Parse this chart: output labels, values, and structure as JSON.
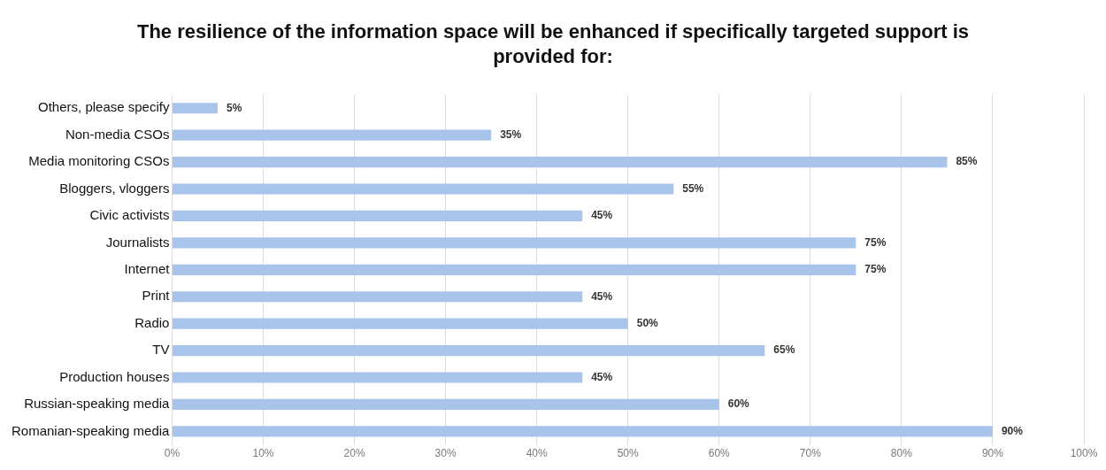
{
  "chart_data": {
    "type": "bar",
    "orientation": "horizontal",
    "title": "The resilience of the information space will be enhanced if specifically targeted support is provided for:",
    "categories": [
      "Others, please specify",
      "Non-media CSOs",
      "Media monitoring CSOs",
      "Bloggers, vloggers",
      "Civic activists",
      "Journalists",
      "Internet",
      "Print",
      "Radio",
      "TV",
      "Production houses",
      "Russian-speaking media",
      "Romanian-speaking media"
    ],
    "values": [
      5,
      35,
      85,
      55,
      45,
      75,
      75,
      45,
      50,
      65,
      45,
      60,
      90
    ],
    "value_labels": [
      "5%",
      "35%",
      "85%",
      "55%",
      "45%",
      "75%",
      "75%",
      "45%",
      "50%",
      "65%",
      "45%",
      "60%",
      "90%"
    ],
    "color": "#a9c4eb",
    "xlim": [
      0,
      100
    ],
    "xticks": [
      {
        "value": 0,
        "label": "0%"
      },
      {
        "value": 10,
        "label": "10%"
      },
      {
        "value": 20,
        "label": "20%"
      },
      {
        "value": 30,
        "label": "30%"
      },
      {
        "value": 40,
        "label": "40%"
      },
      {
        "value": 50,
        "label": "50%"
      },
      {
        "value": 60,
        "label": "60%"
      },
      {
        "value": 70,
        "label": "70%"
      },
      {
        "value": 80,
        "label": "80%"
      },
      {
        "value": 90,
        "label": "90%"
      },
      {
        "value": 100,
        "label": "100%"
      }
    ],
    "grid": "x",
    "legend": false
  }
}
